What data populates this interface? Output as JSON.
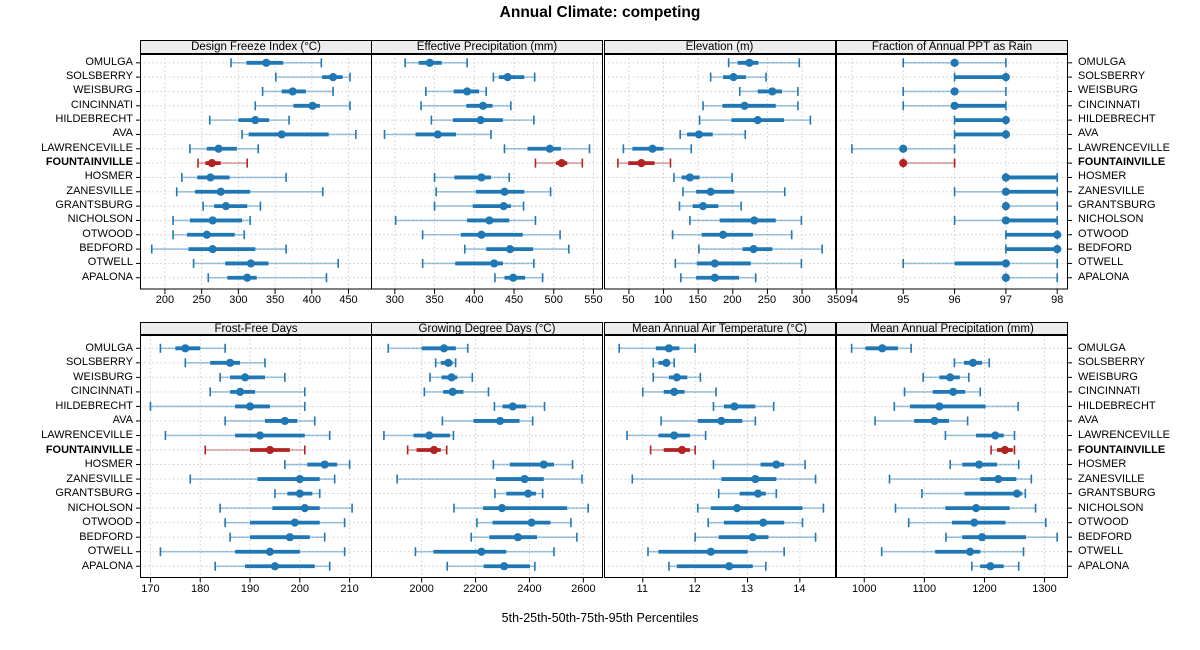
{
  "title": "Annual Climate: competing",
  "caption": "5th-25th-50th-75th-95th Percentiles",
  "colors": {
    "series": "#1f77b4",
    "highlight": "#b22222",
    "grid": "#c8c8c8",
    "strip_bg": "#ededed",
    "border": "#000000"
  },
  "chart_data": {
    "type": "dotplot-percentile-trellis",
    "percentiles": [
      5,
      25,
      50,
      75,
      95
    ],
    "legend_note": "5th-25th-50th-75th-95th Percentiles",
    "categories": [
      "OMULGA",
      "SOLSBERRY",
      "WEISBURG",
      "CINCINNATI",
      "HILDEBRECHT",
      "AVA",
      "LAWRENCEVILLE",
      "FOUNTAINVILLE",
      "HOSMER",
      "ZANESVILLE",
      "GRANTSBURG",
      "NICHOLSON",
      "OTWOOD",
      "BEDFORD",
      "OTWELL",
      "APALONA"
    ],
    "highlight_category": "FOUNTAINVILLE",
    "panels": [
      {
        "title": "Design Freeze Index (°C)",
        "ticks": [
          200,
          250,
          300,
          350,
          400,
          450
        ],
        "xlim": [
          166,
          482
        ],
        "values": [
          [
            290,
            311,
            338,
            361,
            413
          ],
          [
            351,
            414,
            429,
            442,
            452
          ],
          [
            333,
            359,
            374,
            392,
            429
          ],
          [
            323,
            375,
            401,
            411,
            452
          ],
          [
            261,
            300,
            323,
            342,
            369
          ],
          [
            305,
            314,
            359,
            423,
            460
          ],
          [
            234,
            257,
            273,
            298,
            327
          ],
          [
            245,
            255,
            264,
            276,
            312
          ],
          [
            223,
            244,
            262,
            288,
            365
          ],
          [
            216,
            241,
            276,
            316,
            415
          ],
          [
            252,
            267,
            283,
            312,
            330
          ],
          [
            211,
            234,
            265,
            305,
            316
          ],
          [
            211,
            230,
            257,
            295,
            308
          ],
          [
            182,
            232,
            265,
            323,
            365
          ],
          [
            239,
            282,
            317,
            341,
            436
          ],
          [
            259,
            285,
            312,
            325,
            420
          ]
        ]
      },
      {
        "title": "Effective Precipitation (mm)",
        "ticks": [
          300,
          350,
          400,
          450,
          500,
          550
        ],
        "xlim": [
          270,
          562
        ],
        "values": [
          [
            313,
            330,
            344,
            359,
            391
          ],
          [
            424,
            431,
            442,
            463,
            476
          ],
          [
            339,
            374,
            391,
            406,
            415
          ],
          [
            333,
            390,
            411,
            423,
            446
          ],
          [
            346,
            373,
            408,
            436,
            475
          ],
          [
            287,
            326,
            354,
            377,
            421
          ],
          [
            438,
            467,
            495,
            509,
            545
          ],
          [
            477,
            503,
            510,
            517,
            536
          ],
          [
            350,
            375,
            409,
            421,
            444
          ],
          [
            352,
            402,
            438,
            463,
            496
          ],
          [
            350,
            398,
            437,
            446,
            462
          ],
          [
            301,
            391,
            419,
            444,
            477
          ],
          [
            335,
            383,
            409,
            461,
            508
          ],
          [
            388,
            415,
            445,
            474,
            519
          ],
          [
            335,
            376,
            425,
            436,
            475
          ],
          [
            426,
            438,
            449,
            464,
            486
          ]
        ]
      },
      {
        "title": "Elevation (m)",
        "ticks": [
          50,
          100,
          150,
          200,
          250,
          300,
          350
        ],
        "xlim": [
          14,
          349
        ],
        "values": [
          [
            194,
            207,
            224,
            237,
            296
          ],
          [
            168,
            186,
            201,
            219,
            248
          ],
          [
            210,
            236,
            257,
            271,
            294
          ],
          [
            157,
            185,
            217,
            262,
            294
          ],
          [
            152,
            198,
            236,
            274,
            312
          ],
          [
            124,
            134,
            151,
            171,
            218
          ],
          [
            42,
            55,
            84,
            100,
            140
          ],
          [
            34,
            49,
            68,
            87,
            110
          ],
          [
            115,
            126,
            138,
            152,
            199
          ],
          [
            128,
            147,
            168,
            202,
            275
          ],
          [
            123,
            142,
            157,
            179,
            212
          ],
          [
            138,
            181,
            231,
            262,
            299
          ],
          [
            113,
            155,
            186,
            229,
            285
          ],
          [
            151,
            214,
            230,
            257,
            329
          ],
          [
            117,
            148,
            174,
            226,
            299
          ],
          [
            125,
            147,
            174,
            209,
            233
          ]
        ]
      },
      {
        "title": "Fraction of Annual PPT as Rain",
        "ticks": [
          94,
          95,
          96,
          97,
          98
        ],
        "xlim": [
          93.69,
          98.21
        ],
        "values": [
          [
            95,
            96,
            96,
            96,
            97
          ],
          [
            96,
            96,
            97,
            97,
            97
          ],
          [
            95,
            96,
            96,
            96,
            97
          ],
          [
            95,
            96,
            96,
            97,
            97
          ],
          [
            96,
            96,
            97,
            97,
            97
          ],
          [
            96,
            96,
            97,
            97,
            97
          ],
          [
            94,
            95,
            95,
            95,
            96
          ],
          [
            95,
            95,
            95,
            95,
            96
          ],
          [
            97,
            97,
            97,
            98,
            98
          ],
          [
            96,
            97,
            97,
            98,
            98
          ],
          [
            97,
            97,
            97,
            97,
            98
          ],
          [
            96,
            97,
            97,
            98,
            98
          ],
          [
            97,
            97,
            98,
            98,
            98
          ],
          [
            97,
            97,
            98,
            98,
            98
          ],
          [
            95,
            96,
            97,
            97,
            98
          ],
          [
            97,
            97,
            97,
            97,
            98
          ]
        ]
      },
      {
        "title": "Frost-Free Days",
        "ticks": [
          170,
          180,
          190,
          200,
          210
        ],
        "xlim": [
          167.9,
          214.5
        ],
        "values": [
          [
            172,
            175,
            177,
            180,
            185
          ],
          [
            177,
            182,
            186,
            188,
            193
          ],
          [
            184,
            186,
            189,
            193,
            197
          ],
          [
            182,
            186,
            188,
            191,
            201
          ],
          [
            170,
            187,
            190,
            194,
            201
          ],
          [
            185,
            193,
            197,
            199.5,
            203
          ],
          [
            173,
            187,
            192,
            201,
            206
          ],
          [
            181,
            190,
            194,
            198,
            201
          ],
          [
            197,
            201.5,
            205,
            207.5,
            210
          ],
          [
            178,
            191.5,
            200,
            204,
            207
          ],
          [
            195,
            197.5,
            200,
            202.5,
            204
          ],
          [
            184,
            194.5,
            201,
            204,
            210.5
          ],
          [
            185,
            190,
            199,
            204,
            209
          ],
          [
            186,
            190,
            198,
            202,
            205
          ],
          [
            172,
            187,
            194,
            200,
            209
          ],
          [
            183,
            189,
            195,
            203,
            206
          ]
        ]
      },
      {
        "title": "Growing Degree Days (°C)",
        "ticks": [
          2000,
          2200,
          2400,
          2600
        ],
        "xlim": [
          1812,
          2673
        ],
        "values": [
          [
            1876,
            2000,
            2083,
            2127,
            2171
          ],
          [
            2052,
            2071,
            2099,
            2115,
            2126
          ],
          [
            2031,
            2074,
            2111,
            2132,
            2188
          ],
          [
            2010,
            2080,
            2115,
            2155,
            2248
          ],
          [
            2270,
            2300,
            2338,
            2388,
            2456
          ],
          [
            2077,
            2192,
            2291,
            2363,
            2412
          ],
          [
            1860,
            1970,
            2028,
            2105,
            2118
          ],
          [
            1948,
            1981,
            2046,
            2071,
            2093
          ],
          [
            2266,
            2327,
            2453,
            2491,
            2560
          ],
          [
            1909,
            2276,
            2382,
            2453,
            2595
          ],
          [
            2272,
            2314,
            2395,
            2424,
            2449
          ],
          [
            2120,
            2228,
            2298,
            2540,
            2618
          ],
          [
            2205,
            2263,
            2408,
            2478,
            2554
          ],
          [
            2184,
            2251,
            2357,
            2428,
            2576
          ],
          [
            1977,
            2044,
            2222,
            2314,
            2491
          ],
          [
            2095,
            2230,
            2306,
            2402,
            2420
          ]
        ]
      },
      {
        "title": "Mean Annual Air Temperature (°C)",
        "ticks": [
          11,
          12,
          13,
          14
        ],
        "xlim": [
          10.26,
          14.69
        ],
        "values": [
          [
            10.55,
            11.25,
            11.5,
            11.7,
            12.0
          ],
          [
            11.2,
            11.3,
            11.45,
            11.5,
            11.6
          ],
          [
            11.2,
            11.5,
            11.65,
            11.85,
            12.1
          ],
          [
            11.0,
            11.4,
            11.6,
            11.8,
            12.4
          ],
          [
            12.35,
            12.55,
            12.75,
            13.15,
            13.5
          ],
          [
            11.35,
            12.05,
            12.5,
            12.9,
            13.15
          ],
          [
            10.7,
            11.3,
            11.6,
            11.9,
            12.2
          ],
          [
            11.15,
            11.4,
            11.75,
            11.9,
            12.0
          ],
          [
            12.35,
            13.25,
            13.55,
            13.7,
            14.1
          ],
          [
            10.8,
            12.5,
            13.15,
            13.55,
            14.3
          ],
          [
            12.45,
            12.85,
            13.2,
            13.35,
            13.55
          ],
          [
            12.05,
            12.3,
            12.8,
            14.05,
            14.45
          ],
          [
            12.25,
            12.55,
            13.3,
            13.7,
            14.05
          ],
          [
            12.0,
            12.45,
            13.1,
            13.4,
            14.3
          ],
          [
            11.1,
            11.3,
            12.3,
            13.0,
            13.7
          ],
          [
            11.5,
            11.65,
            12.65,
            13.1,
            13.35
          ]
        ]
      },
      {
        "title": "Mean Annual Precipitation (mm)",
        "ticks": [
          1000,
          1100,
          1200,
          1300
        ],
        "xlim": [
          953,
          1339
        ],
        "values": [
          [
            979,
            1002,
            1030,
            1056,
            1078
          ],
          [
            1150,
            1166,
            1181,
            1196,
            1208
          ],
          [
            1098,
            1125,
            1143,
            1159,
            1174
          ],
          [
            1067,
            1114,
            1148,
            1168,
            1193
          ],
          [
            1050,
            1076,
            1125,
            1202,
            1256
          ],
          [
            1018,
            1083,
            1117,
            1141,
            1172
          ],
          [
            1135,
            1186,
            1218,
            1232,
            1250
          ],
          [
            1211,
            1221,
            1234,
            1247,
            1250
          ],
          [
            1143,
            1163,
            1191,
            1221,
            1257
          ],
          [
            1042,
            1193,
            1223,
            1253,
            1278
          ],
          [
            1096,
            1167,
            1254,
            1263,
            1268
          ],
          [
            1052,
            1135,
            1186,
            1242,
            1285
          ],
          [
            1074,
            1146,
            1183,
            1235,
            1302
          ],
          [
            1136,
            1163,
            1196,
            1269,
            1321
          ],
          [
            1029,
            1118,
            1176,
            1193,
            1265
          ],
          [
            1179,
            1193,
            1210,
            1232,
            1257
          ]
        ]
      }
    ]
  }
}
